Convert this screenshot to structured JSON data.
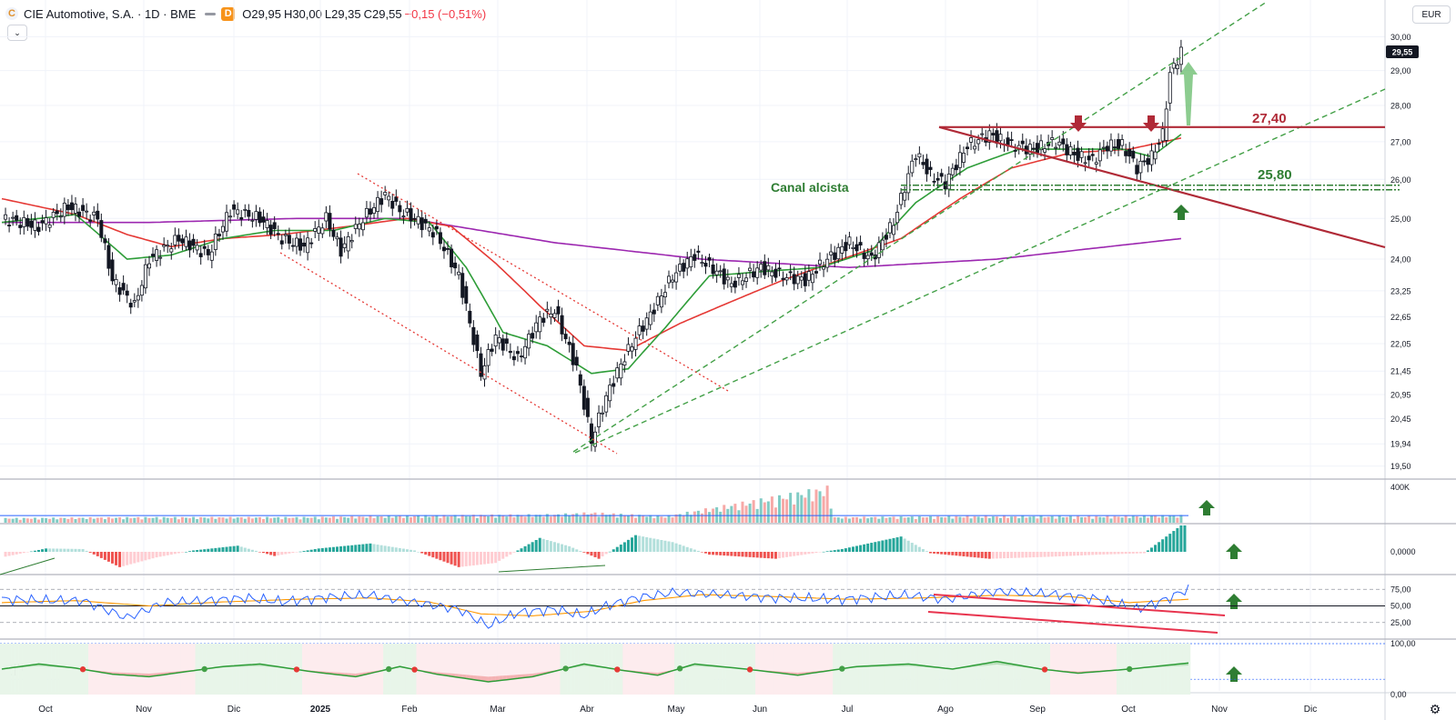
{
  "header": {
    "logo_letter": "C",
    "symbol_title": "CIE Automotive, S.A. · 1D · BME",
    "badge": "D",
    "ohlc": {
      "o": "O29,95",
      "h": "H30,00",
      "l": "L29,35",
      "c": "C29,55"
    },
    "change": "−0,15 (−0,51%)",
    "collapse_icon": "chevron-down-icon"
  },
  "currency_label": "EUR",
  "brand_logo": "17",
  "settings_icon": "gear-icon",
  "colors": {
    "up": "#26a69a",
    "down": "#ef5350",
    "candle": "#131722",
    "ma_green": "#2e9d38",
    "ma_red": "#e53935",
    "ma_purple": "#9c27b0",
    "channel": "#43a047",
    "annotation_red": "#b02a37",
    "annotation_green": "#2e7d32",
    "rsi": "#2962ff",
    "rsi_sig": "#ff9800",
    "trend_red": "#e8344e"
  },
  "chart_data": {
    "type": "candlestick",
    "price_axis": {
      "ticks": [
        "30,00",
        "29,00",
        "28,00",
        "27,00",
        "26,00",
        "25,00",
        "24,00",
        "23,25",
        "22,65",
        "22,05",
        "21,45",
        "20,95",
        "20,45",
        "19,94",
        "19,50"
      ],
      "last_price": "29,55",
      "scale": "log",
      "range": [
        19.3,
        30.9
      ]
    },
    "time_axis": {
      "labels": [
        "Oct",
        "Nov",
        "Dic",
        "2025",
        "Feb",
        "Mar",
        "Abr",
        "May",
        "Jun",
        "Jul",
        "Ago",
        "Sep",
        "Oct",
        "Nov",
        "Dic"
      ]
    },
    "annotations": {
      "resistance_label": "27,40",
      "resistance_value": 27.4,
      "support_label": "25,80",
      "support_value": 25.8,
      "channel_label": "Canal alcista"
    },
    "series": [
      {
        "name": "close",
        "keypoints": [
          [
            0,
            25.0
          ],
          [
            10,
            24.8
          ],
          [
            18,
            25.3
          ],
          [
            26,
            25.0
          ],
          [
            30,
            23.5
          ],
          [
            36,
            22.9
          ],
          [
            40,
            24.0
          ],
          [
            48,
            24.5
          ],
          [
            56,
            24.1
          ],
          [
            62,
            25.2
          ],
          [
            70,
            25.0
          ],
          [
            76,
            24.5
          ],
          [
            82,
            24.3
          ],
          [
            88,
            25.0
          ],
          [
            92,
            24.2
          ],
          [
            98,
            25.0
          ],
          [
            104,
            25.6
          ],
          [
            108,
            25.2
          ],
          [
            112,
            25.0
          ],
          [
            118,
            24.6
          ],
          [
            124,
            23.6
          ],
          [
            130,
            21.4
          ],
          [
            134,
            22.2
          ],
          [
            140,
            21.7
          ],
          [
            146,
            22.6
          ],
          [
            150,
            22.8
          ],
          [
            156,
            21.5
          ],
          [
            160,
            20.0
          ],
          [
            164,
            20.9
          ],
          [
            168,
            21.6
          ],
          [
            172,
            22.2
          ],
          [
            176,
            22.7
          ],
          [
            182,
            23.6
          ],
          [
            188,
            24.1
          ],
          [
            194,
            23.7
          ],
          [
            198,
            23.4
          ],
          [
            206,
            23.8
          ],
          [
            212,
            23.6
          ],
          [
            218,
            23.5
          ],
          [
            224,
            24.0
          ],
          [
            230,
            24.4
          ],
          [
            236,
            24.0
          ],
          [
            242,
            24.9
          ],
          [
            248,
            26.7
          ],
          [
            252,
            26.1
          ],
          [
            256,
            25.9
          ],
          [
            262,
            26.9
          ],
          [
            268,
            27.2
          ],
          [
            274,
            26.9
          ],
          [
            280,
            26.8
          ],
          [
            286,
            27.0
          ],
          [
            292,
            26.6
          ],
          [
            296,
            26.5
          ],
          [
            300,
            26.9
          ],
          [
            304,
            26.9
          ],
          [
            308,
            26.3
          ],
          [
            312,
            26.6
          ],
          [
            315,
            27.2
          ],
          [
            317,
            28.9
          ],
          [
            320,
            29.55
          ]
        ]
      },
      {
        "name": "ma_fast",
        "keypoints": [
          [
            0,
            24.9
          ],
          [
            20,
            25.1
          ],
          [
            34,
            24.0
          ],
          [
            46,
            24.1
          ],
          [
            60,
            24.5
          ],
          [
            74,
            24.7
          ],
          [
            90,
            24.7
          ],
          [
            104,
            25.0
          ],
          [
            116,
            24.9
          ],
          [
            126,
            23.8
          ],
          [
            136,
            22.3
          ],
          [
            148,
            22.0
          ],
          [
            160,
            21.4
          ],
          [
            170,
            21.5
          ],
          [
            180,
            22.4
          ],
          [
            192,
            23.6
          ],
          [
            206,
            23.7
          ],
          [
            222,
            23.8
          ],
          [
            236,
            24.2
          ],
          [
            248,
            25.4
          ],
          [
            262,
            26.3
          ],
          [
            276,
            26.8
          ],
          [
            290,
            26.8
          ],
          [
            304,
            26.8
          ],
          [
            312,
            26.6
          ],
          [
            320,
            27.2
          ]
        ]
      },
      {
        "name": "ma_slow",
        "keypoints": [
          [
            0,
            25.5
          ],
          [
            20,
            25.1
          ],
          [
            34,
            24.6
          ],
          [
            46,
            24.3
          ],
          [
            60,
            24.5
          ],
          [
            76,
            24.6
          ],
          [
            94,
            24.8
          ],
          [
            110,
            25.0
          ],
          [
            122,
            24.8
          ],
          [
            134,
            23.9
          ],
          [
            146,
            22.9
          ],
          [
            158,
            22.0
          ],
          [
            170,
            21.9
          ],
          [
            184,
            22.5
          ],
          [
            198,
            23.0
          ],
          [
            212,
            23.5
          ],
          [
            228,
            24.0
          ],
          [
            244,
            24.5
          ],
          [
            260,
            25.5
          ],
          [
            274,
            26.3
          ],
          [
            290,
            26.7
          ],
          [
            306,
            26.8
          ],
          [
            320,
            27.1
          ]
        ]
      },
      {
        "name": "ma_long",
        "keypoints": [
          [
            0,
            24.9
          ],
          [
            40,
            24.9
          ],
          [
            80,
            25.0
          ],
          [
            110,
            25.0
          ],
          [
            130,
            24.7
          ],
          [
            150,
            24.4
          ],
          [
            170,
            24.2
          ],
          [
            190,
            24.0
          ],
          [
            210,
            23.9
          ],
          [
            230,
            23.8
          ],
          [
            250,
            23.9
          ],
          [
            270,
            24.0
          ],
          [
            290,
            24.2
          ],
          [
            320,
            24.5
          ]
        ]
      },
      {
        "name": "volume",
        "keypoints": [
          [
            0,
            50
          ],
          [
            40,
            60
          ],
          [
            80,
            60
          ],
          [
            120,
            80
          ],
          [
            150,
            90
          ],
          [
            160,
            110
          ],
          [
            180,
            70
          ],
          [
            224,
            380
          ],
          [
            226,
            60
          ],
          [
            260,
            70
          ],
          [
            300,
            70
          ],
          [
            320,
            80
          ]
        ],
        "ylim": [
          0,
          460
        ],
        "tick": "400K"
      },
      {
        "name": "macd_hist",
        "keypoints": [
          [
            0,
            -20
          ],
          [
            12,
            12
          ],
          [
            22,
            10
          ],
          [
            32,
            -55
          ],
          [
            42,
            -20
          ],
          [
            52,
            5
          ],
          [
            64,
            22
          ],
          [
            74,
            -15
          ],
          [
            86,
            12
          ],
          [
            100,
            30
          ],
          [
            112,
            5
          ],
          [
            124,
            -55
          ],
          [
            134,
            -40
          ],
          [
            146,
            50
          ],
          [
            154,
            20
          ],
          [
            162,
            -25
          ],
          [
            172,
            60
          ],
          [
            182,
            35
          ],
          [
            192,
            -10
          ],
          [
            210,
            -25
          ],
          [
            228,
            10
          ],
          [
            244,
            55
          ],
          [
            252,
            -5
          ],
          [
            268,
            -25
          ],
          [
            284,
            -18
          ],
          [
            298,
            -10
          ],
          [
            310,
            -5
          ],
          [
            320,
            95
          ]
        ],
        "ylim": [
          -70,
          100
        ],
        "tick": "0,0000"
      },
      {
        "name": "rsi",
        "keypoints": [
          [
            0,
            60
          ],
          [
            12,
            58
          ],
          [
            22,
            58
          ],
          [
            34,
            32
          ],
          [
            44,
            55
          ],
          [
            56,
            58
          ],
          [
            66,
            62
          ],
          [
            76,
            56
          ],
          [
            88,
            63
          ],
          [
            100,
            66
          ],
          [
            112,
            55
          ],
          [
            124,
            45
          ],
          [
            132,
            20
          ],
          [
            140,
            40
          ],
          [
            150,
            45
          ],
          [
            158,
            35
          ],
          [
            164,
            50
          ],
          [
            172,
            62
          ],
          [
            182,
            70
          ],
          [
            192,
            68
          ],
          [
            210,
            62
          ],
          [
            228,
            60
          ],
          [
            246,
            66
          ],
          [
            256,
            60
          ],
          [
            270,
            72
          ],
          [
            284,
            68
          ],
          [
            298,
            60
          ],
          [
            308,
            45
          ],
          [
            316,
            60
          ],
          [
            322,
            76
          ]
        ],
        "ylim": [
          0,
          100
        ],
        "ticks": [
          "75,00",
          "50,00",
          "25,00"
        ]
      },
      {
        "name": "rsi_signal",
        "keypoints": [
          [
            0,
            55
          ],
          [
            20,
            58
          ],
          [
            40,
            50
          ],
          [
            60,
            56
          ],
          [
            80,
            60
          ],
          [
            100,
            62
          ],
          [
            116,
            56
          ],
          [
            130,
            38
          ],
          [
            144,
            35
          ],
          [
            160,
            42
          ],
          [
            174,
            58
          ],
          [
            190,
            67
          ],
          [
            210,
            64
          ],
          [
            230,
            60
          ],
          [
            250,
            62
          ],
          [
            270,
            66
          ],
          [
            290,
            64
          ],
          [
            306,
            55
          ],
          [
            322,
            60
          ]
        ]
      },
      {
        "name": "oscillator",
        "keypoints": [
          [
            0,
            50
          ],
          [
            10,
            60
          ],
          [
            20,
            52
          ],
          [
            30,
            40
          ],
          [
            40,
            35
          ],
          [
            50,
            45
          ],
          [
            60,
            55
          ],
          [
            70,
            60
          ],
          [
            84,
            45
          ],
          [
            96,
            35
          ],
          [
            108,
            55
          ],
          [
            118,
            40
          ],
          [
            132,
            25
          ],
          [
            144,
            35
          ],
          [
            158,
            60
          ],
          [
            168,
            48
          ],
          [
            178,
            38
          ],
          [
            188,
            60
          ],
          [
            202,
            50
          ],
          [
            216,
            38
          ],
          [
            232,
            55
          ],
          [
            246,
            60
          ],
          [
            258,
            50
          ],
          [
            270,
            65
          ],
          [
            282,
            50
          ],
          [
            292,
            42
          ],
          [
            306,
            50
          ],
          [
            322,
            62
          ]
        ],
        "ylim": [
          0,
          100
        ],
        "ticks": [
          "100,00",
          "0,00"
        ]
      }
    ]
  }
}
